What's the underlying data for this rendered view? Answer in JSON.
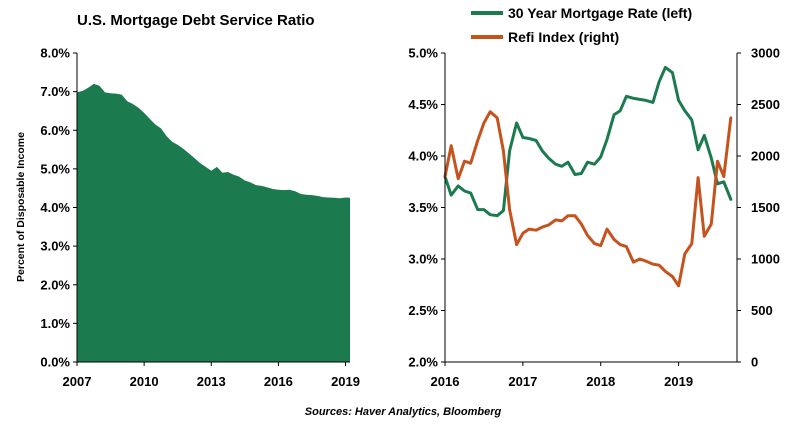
{
  "source_note": "Sources: Haver Analytics, Bloomberg",
  "colors": {
    "green": "#1c7a4f",
    "orange": "#c4531e",
    "axis": "#000000"
  },
  "chart_data": [
    {
      "type": "area",
      "title": "U.S. Mortgage Debt Service Ratio",
      "xlabel": "",
      "ylabel": "Percent of Disposable Income",
      "xlim": [
        2007,
        2019.2
      ],
      "ylim": [
        0,
        8
      ],
      "x_ticks": [
        2007,
        2010,
        2013,
        2016,
        2019
      ],
      "x_tick_labels": [
        "2007",
        "2010",
        "2013",
        "2016",
        "2019"
      ],
      "y_ticks": [
        0,
        1,
        2,
        3,
        4,
        5,
        6,
        7,
        8
      ],
      "y_tick_labels": [
        "0.0%",
        "1.0%",
        "2.0%",
        "3.0%",
        "4.0%",
        "5.0%",
        "6.0%",
        "7.0%",
        "8.0%"
      ],
      "grid": false,
      "series": [
        {
          "color": "#1c7a4f",
          "x": [
            2007.0,
            2007.25,
            2007.5,
            2007.75,
            2008.0,
            2008.25,
            2008.5,
            2008.75,
            2009.0,
            2009.25,
            2009.5,
            2009.75,
            2010.0,
            2010.25,
            2010.5,
            2010.75,
            2011.0,
            2011.25,
            2011.5,
            2011.75,
            2012.0,
            2012.25,
            2012.5,
            2012.75,
            2013.0,
            2013.25,
            2013.5,
            2013.75,
            2014.0,
            2014.25,
            2014.5,
            2014.75,
            2015.0,
            2015.25,
            2015.5,
            2015.75,
            2016.0,
            2016.25,
            2016.5,
            2016.75,
            2017.0,
            2017.25,
            2017.5,
            2017.75,
            2018.0,
            2018.25,
            2018.5,
            2018.75,
            2019.0,
            2019.2
          ],
          "values": [
            6.98,
            7.02,
            7.1,
            7.2,
            7.15,
            6.98,
            6.96,
            6.95,
            6.92,
            6.75,
            6.68,
            6.58,
            6.45,
            6.3,
            6.15,
            6.05,
            5.85,
            5.7,
            5.62,
            5.52,
            5.4,
            5.28,
            5.15,
            5.05,
            4.95,
            5.05,
            4.9,
            4.92,
            4.85,
            4.8,
            4.7,
            4.65,
            4.58,
            4.56,
            4.52,
            4.48,
            4.46,
            4.45,
            4.46,
            4.42,
            4.35,
            4.33,
            4.32,
            4.3,
            4.27,
            4.26,
            4.25,
            4.24,
            4.26,
            4.25
          ]
        }
      ]
    },
    {
      "type": "line",
      "title": "",
      "xlabel": "",
      "xlim": [
        2016,
        2019.75
      ],
      "x_ticks": [
        2016,
        2017,
        2018,
        2019
      ],
      "x_tick_labels": [
        "2016",
        "2017",
        "2018",
        "2019"
      ],
      "ylim_left": [
        2.0,
        5.0
      ],
      "y_ticks_left": [
        2.0,
        2.5,
        3.0,
        3.5,
        4.0,
        4.5,
        5.0
      ],
      "y_tick_labels_left": [
        "2.0%",
        "2.5%",
        "3.0%",
        "3.5%",
        "4.0%",
        "4.5%",
        "5.0%"
      ],
      "ylim_right": [
        0,
        3000
      ],
      "y_ticks_right": [
        0,
        500,
        1000,
        1500,
        2000,
        2500,
        3000
      ],
      "y_tick_labels_right": [
        "0",
        "500",
        "1000",
        "1500",
        "2000",
        "2500",
        "3000"
      ],
      "grid": false,
      "legend_position": "top",
      "series": [
        {
          "name": "30 Year Mortgage Rate (left)",
          "axis": "left",
          "color": "#1c7a4f",
          "x": [
            2016.0,
            2016.08,
            2016.17,
            2016.25,
            2016.33,
            2016.42,
            2016.5,
            2016.58,
            2016.67,
            2016.75,
            2016.83,
            2016.92,
            2017.0,
            2017.08,
            2017.17,
            2017.25,
            2017.33,
            2017.42,
            2017.5,
            2017.58,
            2017.67,
            2017.75,
            2017.83,
            2017.92,
            2018.0,
            2018.08,
            2018.17,
            2018.25,
            2018.33,
            2018.42,
            2018.5,
            2018.58,
            2018.67,
            2018.75,
            2018.83,
            2018.92,
            2019.0,
            2019.08,
            2019.17,
            2019.25,
            2019.33,
            2019.42,
            2019.5,
            2019.58,
            2019.67
          ],
          "values": [
            3.8,
            3.62,
            3.71,
            3.66,
            3.64,
            3.48,
            3.48,
            3.43,
            3.42,
            3.47,
            4.05,
            4.32,
            4.18,
            4.17,
            4.15,
            4.05,
            3.98,
            3.92,
            3.9,
            3.94,
            3.82,
            3.83,
            3.94,
            3.92,
            3.99,
            4.16,
            4.4,
            4.44,
            4.58,
            4.56,
            4.55,
            4.54,
            4.52,
            4.72,
            4.86,
            4.81,
            4.54,
            4.44,
            4.35,
            4.06,
            4.2,
            3.98,
            3.73,
            3.75,
            3.58
          ]
        },
        {
          "name": "Refi Index (right)",
          "axis": "right",
          "color": "#c4531e",
          "x": [
            2016.0,
            2016.08,
            2016.17,
            2016.25,
            2016.33,
            2016.42,
            2016.5,
            2016.58,
            2016.67,
            2016.75,
            2016.83,
            2016.92,
            2017.0,
            2017.08,
            2017.17,
            2017.25,
            2017.33,
            2017.42,
            2017.5,
            2017.58,
            2017.67,
            2017.75,
            2017.83,
            2017.92,
            2018.0,
            2018.08,
            2018.17,
            2018.25,
            2018.33,
            2018.42,
            2018.5,
            2018.58,
            2018.67,
            2018.75,
            2018.83,
            2018.92,
            2019.0,
            2019.08,
            2019.17,
            2019.25,
            2019.33,
            2019.42,
            2019.5,
            2019.58,
            2019.67
          ],
          "values": [
            1800,
            2100,
            1780,
            1950,
            1930,
            2150,
            2320,
            2430,
            2370,
            2050,
            1480,
            1140,
            1250,
            1290,
            1280,
            1310,
            1330,
            1380,
            1370,
            1420,
            1420,
            1340,
            1230,
            1150,
            1130,
            1290,
            1190,
            1140,
            1120,
            970,
            1000,
            980,
            950,
            940,
            880,
            830,
            740,
            1050,
            1150,
            1790,
            1220,
            1340,
            1950,
            1800,
            2370
          ]
        }
      ]
    }
  ]
}
